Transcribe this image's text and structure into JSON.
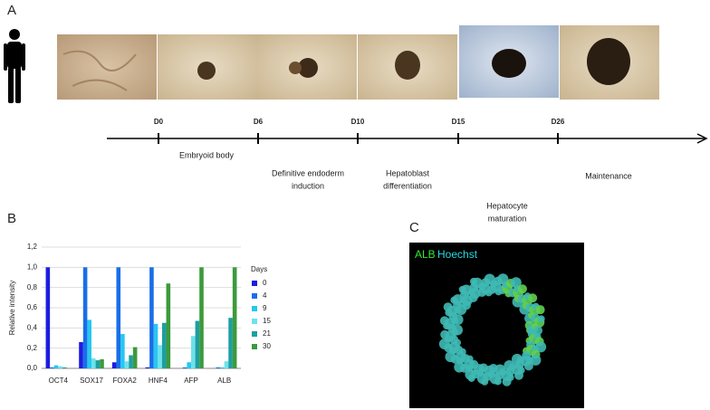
{
  "panels": {
    "a": "A",
    "b": "B",
    "c": "C"
  },
  "timeline": {
    "days": [
      "D0",
      "D6",
      "D10",
      "D15",
      "D26"
    ],
    "stages": [
      [
        "Embryoid body"
      ],
      [
        "Definitive endoderm",
        "induction"
      ],
      [
        "Hepatoblast",
        "differentiation"
      ],
      [
        "Hepatocyte",
        "maturation"
      ],
      [
        "Maintenance"
      ]
    ]
  },
  "stain": {
    "green": "ALB",
    "cyan": "Hoechst"
  },
  "chart_data": {
    "type": "bar",
    "y_label": "Relative intensity",
    "legend_title": "Days",
    "categories": [
      "OCT4",
      "SOX17",
      "FOXA2",
      "HNF4",
      "AFP",
      "ALB"
    ],
    "series": [
      {
        "name": "0",
        "color": "#1c1ce0",
        "values": [
          1.0,
          0.26,
          0.06,
          0.01,
          0.0,
          0.0
        ]
      },
      {
        "name": "4",
        "color": "#1a6ee8",
        "values": [
          0.01,
          1.0,
          1.0,
          1.0,
          0.01,
          0.01
        ]
      },
      {
        "name": "9",
        "color": "#28c6f2",
        "values": [
          0.03,
          0.48,
          0.34,
          0.44,
          0.06,
          0.01
        ]
      },
      {
        "name": "15",
        "color": "#6ee2ea",
        "values": [
          0.02,
          0.1,
          0.07,
          0.23,
          0.32,
          0.07
        ]
      },
      {
        "name": "21",
        "color": "#1f9ea2",
        "values": [
          0.01,
          0.08,
          0.13,
          0.45,
          0.47,
          0.5
        ]
      },
      {
        "name": "30",
        "color": "#3c9a3c",
        "values": [
          0.0,
          0.09,
          0.21,
          0.84,
          1.0,
          1.0
        ]
      }
    ],
    "ylim": [
      0,
      1.2
    ],
    "yticks": [
      {
        "value": 0,
        "label": "0,0"
      },
      {
        "value": 0.2,
        "label": "0,2"
      },
      {
        "value": 0.4,
        "label": "0,4"
      },
      {
        "value": 0.6,
        "label": "0,6"
      },
      {
        "value": 0.8,
        "label": "0,8"
      },
      {
        "value": 1,
        "label": "1,0"
      },
      {
        "value": 1.2,
        "label": "1,2"
      }
    ],
    "grid": true
  }
}
